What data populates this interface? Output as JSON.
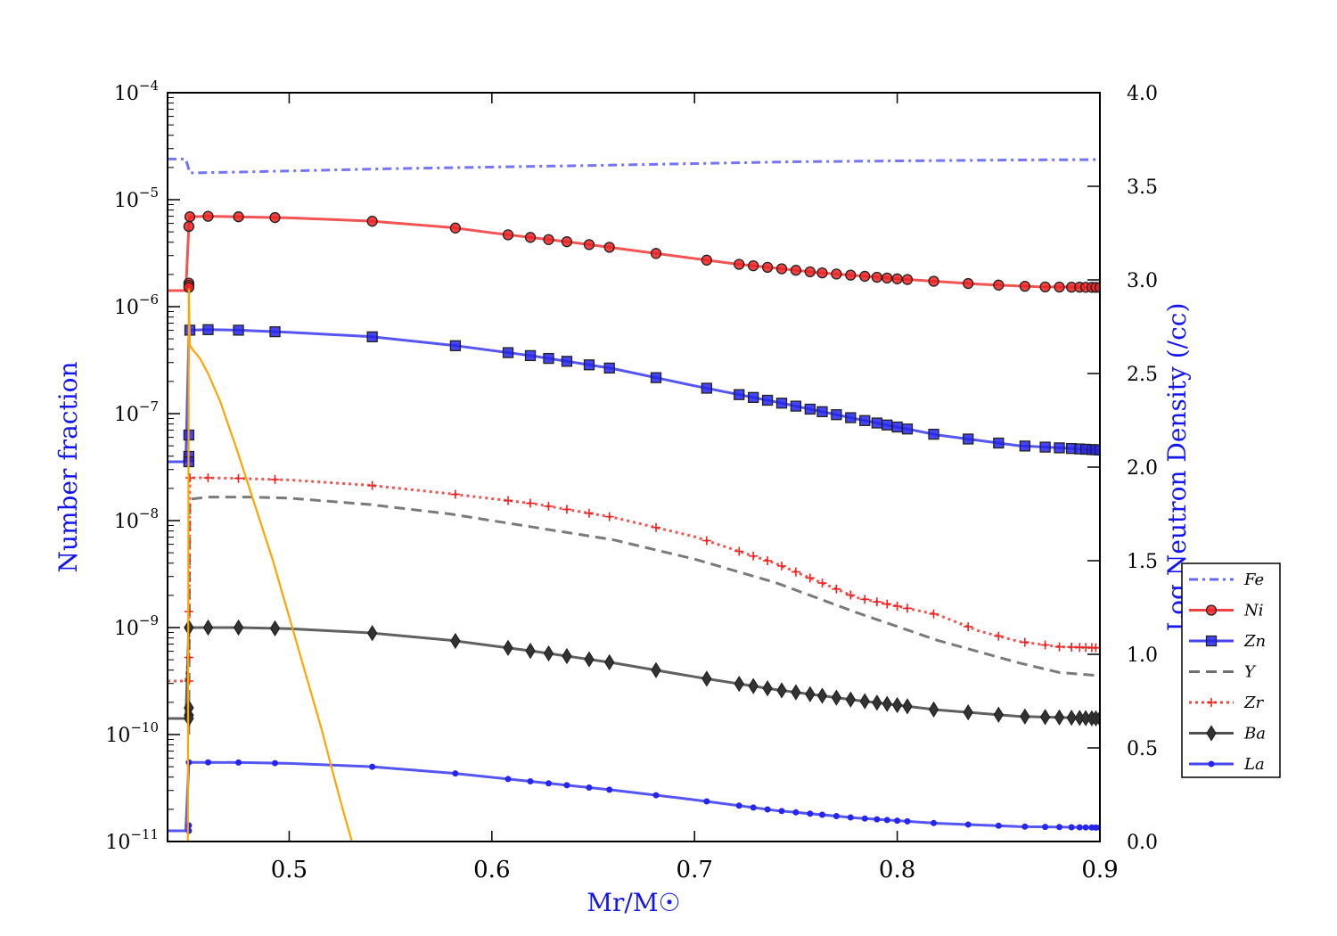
{
  "chart_data": {
    "type": "line",
    "xlabel": "Mr/M☉",
    "ylabel_left": "Number fraction",
    "ylabel_right": "Log Neutron Density (/cc)",
    "xlim": [
      0.44,
      0.9
    ],
    "ylim_left": [
      1e-11,
      0.0001
    ],
    "yscale_left": "log",
    "ylim_right": [
      0.0,
      4.0
    ],
    "x_ticks": [
      {
        "value": 0.5,
        "label": "0.5"
      },
      {
        "value": 0.6,
        "label": "0.6"
      },
      {
        "value": 0.7,
        "label": "0.7"
      },
      {
        "value": 0.8,
        "label": "0.8"
      },
      {
        "value": 0.9,
        "label": "0.9"
      }
    ],
    "y_ticks_left": [
      {
        "value": -11,
        "base": "10",
        "exp": "−11"
      },
      {
        "value": -10,
        "base": "10",
        "exp": "−10"
      },
      {
        "value": -9,
        "base": "10",
        "exp": "−9"
      },
      {
        "value": -8,
        "base": "10",
        "exp": "−8"
      },
      {
        "value": -7,
        "base": "10",
        "exp": "−7"
      },
      {
        "value": -6,
        "base": "10",
        "exp": "−6"
      },
      {
        "value": -5,
        "base": "10",
        "exp": "−5"
      },
      {
        "value": -4,
        "base": "10",
        "exp": "−4"
      }
    ],
    "y_ticks_right": [
      "0.0",
      "0.5",
      "1.0",
      "1.5",
      "2.0",
      "2.5",
      "3.0",
      "3.5",
      "4.0"
    ],
    "legend_position": "right",
    "series": [
      {
        "name": "Fe",
        "color": "#4d4df5",
        "dash": "dashdot",
        "marker": "none",
        "points": [
          [
            0.44,
            -4.62
          ],
          [
            0.449,
            -4.62
          ],
          [
            0.451,
            -4.75
          ],
          [
            0.48,
            -4.74
          ],
          [
            0.55,
            -4.71
          ],
          [
            0.65,
            -4.68
          ],
          [
            0.75,
            -4.645
          ],
          [
            0.85,
            -4.63
          ],
          [
            0.9,
            -4.625
          ]
        ],
        "marker_x": []
      },
      {
        "name": "Ni",
        "color": "#ee2222",
        "dash": "solid",
        "marker": "circle",
        "points": [
          [
            0.44,
            -5.85
          ],
          [
            0.449,
            -5.85
          ],
          [
            0.4505,
            -5.25
          ],
          [
            0.451,
            -5.16
          ],
          [
            0.46,
            -5.155
          ],
          [
            0.475,
            -5.16
          ],
          [
            0.5,
            -5.17
          ],
          [
            0.54,
            -5.2
          ],
          [
            0.58,
            -5.26
          ],
          [
            0.6,
            -5.31
          ],
          [
            0.64,
            -5.4
          ],
          [
            0.68,
            -5.5
          ],
          [
            0.72,
            -5.6
          ],
          [
            0.76,
            -5.68
          ],
          [
            0.8,
            -5.74
          ],
          [
            0.84,
            -5.79
          ],
          [
            0.87,
            -5.815
          ],
          [
            0.9,
            -5.82
          ]
        ],
        "marker_x": [
          0.4505,
          0.451,
          0.46,
          0.475,
          0.493,
          0.541,
          0.582,
          0.608,
          0.619,
          0.628,
          0.637,
          0.648,
          0.658,
          0.681,
          0.706,
          0.722,
          0.729,
          0.736,
          0.743,
          0.75,
          0.757,
          0.763,
          0.77,
          0.777,
          0.784,
          0.79,
          0.795,
          0.8,
          0.805,
          0.818,
          0.835,
          0.85,
          0.863,
          0.873,
          0.88,
          0.886,
          0.89,
          0.893,
          0.896,
          0.898,
          0.9
        ],
        "marker_x_extra_values": [
          -5.78,
          -5.8,
          -5.82
        ]
      },
      {
        "name": "Zn",
        "color": "#2525ee",
        "dash": "solid",
        "marker": "square",
        "points": [
          [
            0.44,
            -7.45
          ],
          [
            0.449,
            -7.45
          ],
          [
            0.4505,
            -6.3
          ],
          [
            0.451,
            -6.22
          ],
          [
            0.46,
            -6.215
          ],
          [
            0.475,
            -6.22
          ],
          [
            0.5,
            -6.24
          ],
          [
            0.54,
            -6.28
          ],
          [
            0.58,
            -6.36
          ],
          [
            0.62,
            -6.46
          ],
          [
            0.66,
            -6.58
          ],
          [
            0.7,
            -6.74
          ],
          [
            0.74,
            -6.89
          ],
          [
            0.78,
            -7.05
          ],
          [
            0.82,
            -7.2
          ],
          [
            0.86,
            -7.3
          ],
          [
            0.9,
            -7.34
          ]
        ],
        "marker_x": [
          0.451,
          0.46,
          0.475,
          0.493,
          0.541,
          0.582,
          0.608,
          0.619,
          0.628,
          0.637,
          0.648,
          0.658,
          0.681,
          0.706,
          0.722,
          0.729,
          0.736,
          0.743,
          0.75,
          0.757,
          0.763,
          0.77,
          0.777,
          0.784,
          0.79,
          0.795,
          0.8,
          0.805,
          0.818,
          0.835,
          0.85,
          0.863,
          0.873,
          0.88,
          0.886,
          0.89,
          0.893,
          0.896,
          0.898,
          0.9
        ],
        "marker_x_extra_values": [
          -7.2,
          -7.4,
          -7.45
        ]
      },
      {
        "name": "Y",
        "color": "#555555",
        "dash": "dashed",
        "marker": "none",
        "points": [
          [
            0.4505,
            -10.0
          ],
          [
            0.451,
            -7.8
          ],
          [
            0.46,
            -7.78
          ],
          [
            0.48,
            -7.78
          ],
          [
            0.5,
            -7.79
          ],
          [
            0.54,
            -7.85
          ],
          [
            0.58,
            -7.94
          ],
          [
            0.62,
            -8.06
          ],
          [
            0.66,
            -8.18
          ],
          [
            0.7,
            -8.36
          ],
          [
            0.74,
            -8.58
          ],
          [
            0.78,
            -8.86
          ],
          [
            0.82,
            -9.12
          ],
          [
            0.86,
            -9.33
          ],
          [
            0.88,
            -9.42
          ],
          [
            0.9,
            -9.45
          ]
        ],
        "marker_x": []
      },
      {
        "name": "Zr",
        "color": "#ee2222",
        "dash": "dotted",
        "marker": "plus",
        "points": [
          [
            0.44,
            -9.5
          ],
          [
            0.449,
            -9.5
          ],
          [
            0.4505,
            -9.28
          ],
          [
            0.451,
            -7.6
          ],
          [
            0.46,
            -7.6
          ],
          [
            0.475,
            -7.605
          ],
          [
            0.5,
            -7.62
          ],
          [
            0.54,
            -7.67
          ],
          [
            0.58,
            -7.75
          ],
          [
            0.62,
            -7.84
          ],
          [
            0.66,
            -7.97
          ],
          [
            0.7,
            -8.15
          ],
          [
            0.74,
            -8.4
          ],
          [
            0.78,
            -8.72
          ],
          [
            0.82,
            -8.88
          ],
          [
            0.84,
            -9.03
          ],
          [
            0.86,
            -9.13
          ],
          [
            0.88,
            -9.18
          ],
          [
            0.9,
            -9.19
          ]
        ],
        "marker_x": [
          0.451,
          0.46,
          0.475,
          0.493,
          0.541,
          0.582,
          0.608,
          0.619,
          0.628,
          0.637,
          0.648,
          0.658,
          0.681,
          0.706,
          0.722,
          0.729,
          0.736,
          0.743,
          0.75,
          0.757,
          0.763,
          0.77,
          0.777,
          0.784,
          0.79,
          0.795,
          0.8,
          0.805,
          0.818,
          0.835,
          0.85,
          0.863,
          0.873,
          0.88,
          0.886,
          0.89,
          0.893,
          0.896,
          0.898,
          0.9
        ],
        "marker_x_extra_values": [
          -8.85,
          -9.28,
          -9.5
        ]
      },
      {
        "name": "Ba",
        "color": "#333333",
        "dash": "solid",
        "marker": "diamond",
        "points": [
          [
            0.44,
            -9.85
          ],
          [
            0.449,
            -9.85
          ],
          [
            0.4505,
            -9.0
          ],
          [
            0.46,
            -9.0
          ],
          [
            0.475,
            -9.0
          ],
          [
            0.5,
            -9.01
          ],
          [
            0.54,
            -9.05
          ],
          [
            0.58,
            -9.12
          ],
          [
            0.62,
            -9.22
          ],
          [
            0.66,
            -9.33
          ],
          [
            0.7,
            -9.46
          ],
          [
            0.74,
            -9.58
          ],
          [
            0.78,
            -9.68
          ],
          [
            0.82,
            -9.77
          ],
          [
            0.86,
            -9.83
          ],
          [
            0.9,
            -9.85
          ]
        ],
        "marker_x": [
          0.4505,
          0.46,
          0.475,
          0.493,
          0.541,
          0.582,
          0.608,
          0.619,
          0.628,
          0.637,
          0.648,
          0.658,
          0.681,
          0.706,
          0.722,
          0.729,
          0.736,
          0.743,
          0.75,
          0.757,
          0.763,
          0.77,
          0.777,
          0.784,
          0.79,
          0.795,
          0.8,
          0.805,
          0.818,
          0.835,
          0.85,
          0.863,
          0.873,
          0.88,
          0.886,
          0.89,
          0.893,
          0.896,
          0.898,
          0.9
        ],
        "marker_x_extra_values": [
          -9.75,
          -9.82,
          -9.85
        ]
      },
      {
        "name": "La",
        "color": "#2525ee",
        "dash": "solid",
        "marker": "dot",
        "points": [
          [
            0.44,
            -10.9
          ],
          [
            0.449,
            -10.9
          ],
          [
            0.4505,
            -10.26
          ],
          [
            0.46,
            -10.26
          ],
          [
            0.48,
            -10.262
          ],
          [
            0.5,
            -10.27
          ],
          [
            0.54,
            -10.3
          ],
          [
            0.58,
            -10.36
          ],
          [
            0.62,
            -10.44
          ],
          [
            0.66,
            -10.52
          ],
          [
            0.7,
            -10.61
          ],
          [
            0.74,
            -10.71
          ],
          [
            0.78,
            -10.78
          ],
          [
            0.82,
            -10.83
          ],
          [
            0.86,
            -10.86
          ],
          [
            0.9,
            -10.87
          ]
        ],
        "marker_x": [
          0.4505,
          0.46,
          0.475,
          0.493,
          0.541,
          0.582,
          0.608,
          0.619,
          0.628,
          0.637,
          0.648,
          0.658,
          0.681,
          0.706,
          0.722,
          0.729,
          0.736,
          0.743,
          0.75,
          0.757,
          0.763,
          0.77,
          0.777,
          0.784,
          0.79,
          0.795,
          0.8,
          0.805,
          0.818,
          0.835,
          0.85,
          0.863,
          0.873,
          0.88,
          0.886,
          0.89,
          0.893,
          0.896,
          0.898,
          0.9
        ],
        "marker_x_extra_values": [
          -10.85,
          -10.9
        ]
      }
    ],
    "neutron_density": {
      "name": "Log Neutron Density",
      "color": "#ffa500",
      "axis": "right",
      "points": [
        [
          0.45,
          0.0
        ],
        [
          0.4505,
          2.95
        ],
        [
          0.451,
          2.65
        ],
        [
          0.453,
          2.62
        ],
        [
          0.456,
          2.58
        ],
        [
          0.46,
          2.5
        ],
        [
          0.466,
          2.35
        ],
        [
          0.474,
          2.1
        ],
        [
          0.483,
          1.8
        ],
        [
          0.492,
          1.5
        ],
        [
          0.5,
          1.2
        ],
        [
          0.508,
          0.9
        ],
        [
          0.516,
          0.6
        ],
        [
          0.522,
          0.35
        ],
        [
          0.527,
          0.15
        ],
        [
          0.531,
          0.0
        ]
      ]
    }
  }
}
